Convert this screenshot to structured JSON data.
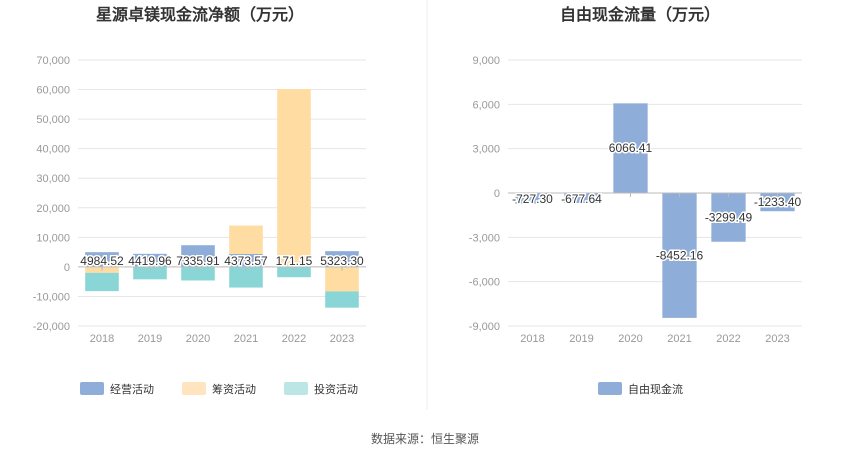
{
  "source_text": "数据来源：恒生聚源",
  "chart_data": [
    {
      "type": "bar",
      "stacked": true,
      "title": "星源卓镁现金流净额（万元）",
      "categories": [
        "2018",
        "2019",
        "2020",
        "2021",
        "2022",
        "2023"
      ],
      "ylim": [
        -20000,
        70000
      ],
      "yticks": [
        70000,
        60000,
        50000,
        40000,
        30000,
        20000,
        10000,
        0,
        -10000,
        -20000
      ],
      "ytick_labels": [
        "70,000",
        "60,000",
        "50,000",
        "40,000",
        "30,000",
        "20,000",
        "10,000",
        "0",
        "-10,000",
        "-20,000"
      ],
      "grid": true,
      "legend": "bottom",
      "series": [
        {
          "name": "经营活动",
          "color": "#8fadd9",
          "values": [
            4984.52,
            4419.96,
            7335.91,
            4373.57,
            171.15,
            5323.3
          ]
        },
        {
          "name": "筹资活动",
          "color": "#fedca2",
          "values": [
            -2000,
            0,
            0,
            9600,
            60000,
            -8300
          ]
        },
        {
          "name": "投资活动",
          "color": "#8ad6d6",
          "values": [
            -6200,
            -4200,
            -4600,
            -7000,
            -3500,
            -5500
          ]
        }
      ],
      "data_labels": [
        "4984.52",
        "4419.96",
        "7335.91",
        "4373.57",
        "171.15",
        "5323.30"
      ]
    },
    {
      "type": "bar",
      "title": "自由现金流量（万元）",
      "categories": [
        "2018",
        "2019",
        "2020",
        "2021",
        "2022",
        "2023"
      ],
      "ylim": [
        -9000,
        9000
      ],
      "yticks": [
        9000,
        6000,
        3000,
        0,
        -3000,
        -6000,
        -9000
      ],
      "ytick_labels": [
        "9,000",
        "6,000",
        "3,000",
        "0",
        "-3,000",
        "-6,000",
        "-9,000"
      ],
      "grid": true,
      "legend": "bottom",
      "series": [
        {
          "name": "自由现金流",
          "color": "#8fadd9",
          "values": [
            -727.3,
            -677.64,
            6066.41,
            -8452.16,
            -3299.49,
            -1233.4
          ]
        }
      ],
      "data_labels": [
        "-727.30",
        "-677.64",
        "6066.41",
        "-8452.16",
        "-3299.49",
        "-1233.40"
      ]
    }
  ]
}
